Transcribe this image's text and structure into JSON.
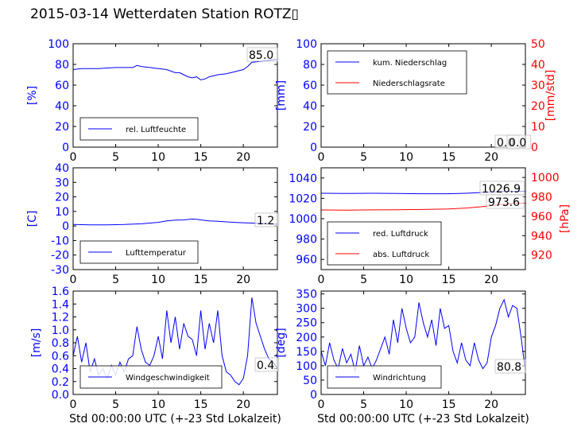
{
  "title": "2015-03-14 Wetterdaten Station ROTZ▯",
  "colors": {
    "blue": "#0000ff",
    "red": "#ff0000",
    "black": "#000000"
  },
  "chart_data": [
    {
      "id": "humidity",
      "type": "line",
      "xlim": [
        0,
        24
      ],
      "ylim": [
        0,
        100
      ],
      "xticks": [
        0,
        5,
        10,
        15,
        20
      ],
      "yticks": [
        0,
        20,
        40,
        60,
        80,
        100
      ],
      "ylabel": "[%]",
      "xlabel": "",
      "legend_placement": "lower-left",
      "annotation": "85.0",
      "series": [
        {
          "name": "rel. Luftfeuchte",
          "color": "blue",
          "axis": "left",
          "x": [
            0,
            1,
            2,
            3,
            4,
            5,
            6,
            7,
            7.5,
            8,
            9,
            10,
            11,
            12,
            12.5,
            13,
            13.5,
            14,
            14.5,
            15,
            15.5,
            16,
            17,
            18,
            19,
            20,
            20.5,
            21,
            22,
            23,
            24
          ],
          "y": [
            75,
            76,
            76,
            76,
            76.5,
            77,
            77,
            77,
            79,
            78,
            77,
            76,
            75,
            72,
            72,
            70,
            68,
            67,
            68,
            65,
            66,
            68,
            70,
            71,
            73,
            75,
            78,
            82,
            83,
            84,
            85
          ]
        }
      ]
    },
    {
      "id": "precip",
      "type": "line",
      "xlim": [
        0,
        24
      ],
      "ylim": [
        0,
        100
      ],
      "ylim_right": [
        0,
        50
      ],
      "xticks": [
        0,
        5,
        10,
        15,
        20
      ],
      "yticks": [
        0,
        20,
        40,
        60,
        80,
        100
      ],
      "yticks_right": [
        0,
        10,
        20,
        30,
        40,
        50
      ],
      "ylabel": "[mm]",
      "ylabel_right": "[mm/std]",
      "xlabel": "",
      "legend_placement": "upper-left",
      "annotations": [
        "0.0",
        "0.0"
      ],
      "series": [
        {
          "name": "kum. Niederschlag",
          "color": "blue",
          "axis": "left",
          "x": [
            0,
            24
          ],
          "y": [
            0,
            0
          ]
        },
        {
          "name": "Niederschlagsrate",
          "color": "red",
          "axis": "right",
          "x": [
            0,
            24
          ],
          "y": [
            0,
            0
          ]
        }
      ]
    },
    {
      "id": "temperature",
      "type": "line",
      "xlim": [
        0,
        24
      ],
      "ylim": [
        -30,
        40
      ],
      "xticks": [
        0,
        5,
        10,
        15,
        20
      ],
      "yticks": [
        -30,
        -20,
        -10,
        0,
        10,
        20,
        30,
        40
      ],
      "ylabel": "[C]",
      "xlabel": "",
      "legend_placement": "lower-left",
      "annotation": "1.2",
      "series": [
        {
          "name": "Lufttemperatur",
          "color": "blue",
          "axis": "left",
          "x": [
            0,
            2,
            4,
            6,
            8,
            9,
            10,
            11,
            12,
            13,
            14,
            14.5,
            15,
            16,
            17,
            18,
            19,
            20,
            21,
            22,
            23,
            24
          ],
          "y": [
            1.0,
            0.8,
            0.8,
            1.0,
            1.5,
            2.0,
            2.5,
            3.5,
            4.0,
            4.2,
            4.8,
            4.6,
            4.2,
            3.5,
            3.2,
            2.8,
            2.5,
            2.2,
            2.0,
            1.7,
            1.4,
            1.2
          ]
        }
      ]
    },
    {
      "id": "pressure",
      "type": "line",
      "xlim": [
        0,
        24
      ],
      "ylim": [
        950,
        1050
      ],
      "ylim_right": [
        905,
        1010
      ],
      "xticks": [
        0,
        5,
        10,
        15,
        20
      ],
      "yticks": [
        960,
        980,
        1000,
        1020,
        1040
      ],
      "yticks_right": [
        920,
        940,
        960,
        980,
        1000
      ],
      "ylabel": "",
      "ylabel_right": "[hPa]",
      "xlabel": "",
      "legend_placement": "lower-left",
      "annotations": [
        "1026.9",
        "973.6"
      ],
      "series": [
        {
          "name": "red. Luftdruck",
          "color": "blue",
          "axis": "left",
          "x": [
            0,
            3,
            6,
            9,
            12,
            15,
            17,
            19,
            20,
            21,
            22,
            23,
            24
          ],
          "y": [
            1025.0,
            1024.8,
            1025.0,
            1024.8,
            1024.5,
            1024.5,
            1025.0,
            1025.8,
            1026.2,
            1026.6,
            1026.8,
            1026.9,
            1026.9
          ]
        },
        {
          "name": "abs. Luftdruck",
          "color": "red",
          "axis": "right",
          "x": [
            0,
            3,
            6,
            9,
            12,
            15,
            17,
            19,
            20,
            21,
            22,
            23,
            24
          ],
          "y": [
            966.5,
            966.4,
            966.6,
            966.8,
            967.0,
            967.5,
            968.5,
            970.0,
            971.0,
            972.0,
            972.8,
            973.4,
            973.6
          ]
        }
      ]
    },
    {
      "id": "windspeed",
      "type": "line",
      "xlim": [
        0,
        24
      ],
      "ylim": [
        0,
        1.6
      ],
      "xticks": [
        0,
        5,
        10,
        15,
        20
      ],
      "yticks": [
        0.0,
        0.2,
        0.4,
        0.6,
        0.8,
        1.0,
        1.2,
        1.4,
        1.6
      ],
      "ylabel": "[m/s]",
      "xlabel": "Std 00:00:00 UTC (+-23 Std Lokalzeit)",
      "legend_placement": "lower-left",
      "annotation": "0.4",
      "series": [
        {
          "name": "Windgeschwindigkeit",
          "color": "blue",
          "axis": "left",
          "x": [
            0,
            0.5,
            1,
            1.5,
            2,
            2.5,
            3,
            3.5,
            4,
            4.5,
            5,
            5.5,
            6,
            6.5,
            7,
            7.5,
            8,
            8.5,
            9,
            9.5,
            10,
            10.5,
            11,
            11.5,
            12,
            12.5,
            13,
            13.5,
            14,
            14.5,
            15,
            15.5,
            16,
            16.5,
            17,
            17.5,
            18,
            18.5,
            19,
            19.5,
            20,
            20.5,
            21,
            21.5,
            22,
            22.5,
            23,
            23.5,
            24
          ],
          "y": [
            0.6,
            0.9,
            0.5,
            0.8,
            0.35,
            0.55,
            0.3,
            0.4,
            0.25,
            0.45,
            0.3,
            0.5,
            0.35,
            0.55,
            0.6,
            1.05,
            0.7,
            0.5,
            0.45,
            0.6,
            0.9,
            0.55,
            1.3,
            0.8,
            1.2,
            0.7,
            1.1,
            0.9,
            0.85,
            0.6,
            1.3,
            0.7,
            1.1,
            0.8,
            1.3,
            0.6,
            0.35,
            0.3,
            0.2,
            0.15,
            0.25,
            0.6,
            1.5,
            1.1,
            0.9,
            0.7,
            0.55,
            0.5,
            0.4
          ]
        }
      ]
    },
    {
      "id": "winddirection",
      "type": "line",
      "xlim": [
        0,
        24
      ],
      "ylim": [
        0,
        360
      ],
      "xticks": [
        0,
        5,
        10,
        15,
        20
      ],
      "yticks": [
        0,
        50,
        100,
        150,
        200,
        250,
        300,
        350
      ],
      "ylabel": "[deg]",
      "xlabel": "Std 00:00:00 UTC (+-23 Std Lokalzeit)",
      "legend_placement": "lower-left",
      "annotation": "80.8",
      "series": [
        {
          "name": "Windrichtung",
          "color": "blue",
          "axis": "left",
          "x": [
            0,
            0.5,
            1,
            1.5,
            2,
            2.5,
            3,
            3.5,
            4,
            4.5,
            5,
            5.5,
            6,
            6.5,
            7,
            7.5,
            8,
            8.5,
            9,
            9.5,
            10,
            10.5,
            11,
            11.5,
            12,
            12.5,
            13,
            13.5,
            14,
            14.5,
            15,
            15.5,
            16,
            16.5,
            17,
            17.5,
            18,
            18.5,
            19,
            19.5,
            20,
            20.5,
            21,
            21.5,
            22,
            22.5,
            23,
            23.5,
            24
          ],
          "y": [
            150,
            100,
            180,
            120,
            90,
            160,
            110,
            140,
            80,
            170,
            100,
            130,
            90,
            120,
            160,
            200,
            140,
            260,
            180,
            300,
            230,
            180,
            200,
            320,
            250,
            200,
            260,
            170,
            300,
            230,
            240,
            150,
            110,
            180,
            120,
            100,
            180,
            120,
            90,
            110,
            200,
            240,
            300,
            330,
            270,
            310,
            300,
            200,
            80
          ]
        }
      ]
    }
  ]
}
